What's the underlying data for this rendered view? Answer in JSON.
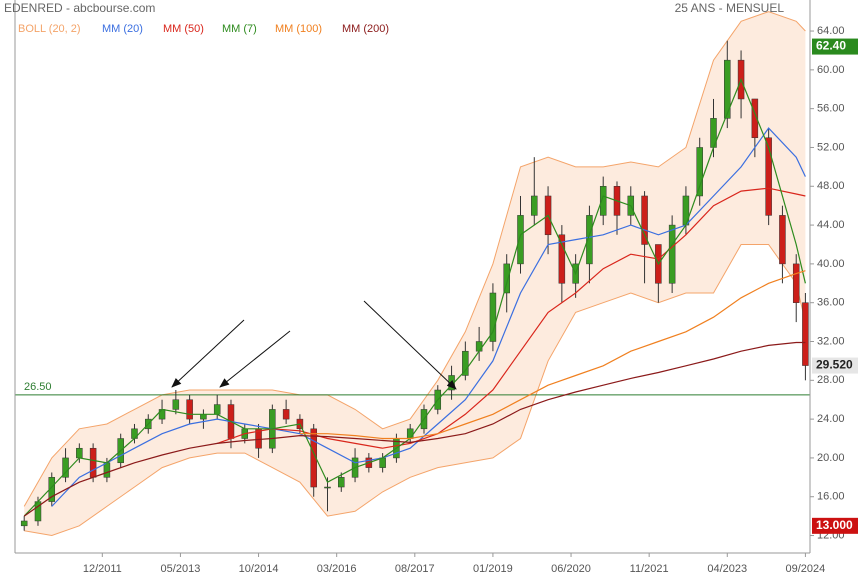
{
  "chart_data": {
    "type": "candlestick",
    "title": "EDENRED - abcbourse.com",
    "subtitle": "25 ANS - MENSUEL",
    "xlim": [
      "05/2010",
      "10/2024"
    ],
    "xticks": [
      "12/2011",
      "05/2013",
      "10/2014",
      "03/2016",
      "08/2017",
      "01/2019",
      "06/2020",
      "11/2021",
      "04/2023",
      "09/2024"
    ],
    "ylim": [
      10.2,
      67.2
    ],
    "yticks": [
      {
        "value": 12,
        "label": "12.00"
      },
      {
        "value": 16,
        "label": "16.00"
      },
      {
        "value": 20,
        "label": "20.00"
      },
      {
        "value": 24,
        "label": "24.00"
      },
      {
        "value": 28,
        "label": "28.00"
      },
      {
        "value": 32,
        "label": "32.00"
      },
      {
        "value": 36,
        "label": "36.00"
      },
      {
        "value": 40,
        "label": "40.00"
      },
      {
        "value": 44,
        "label": "44.00"
      },
      {
        "value": 48,
        "label": "48.00"
      },
      {
        "value": 52,
        "label": "52.00"
      },
      {
        "value": 56,
        "label": "56.00"
      },
      {
        "value": 60,
        "label": "60.00"
      },
      {
        "value": 64,
        "label": "64.00"
      }
    ],
    "up_color": "#3a9d23",
    "down_color": "#cc1f1a",
    "candles": {
      "x": [
        "07/2010",
        "10/2010",
        "01/2011",
        "04/2011",
        "07/2011",
        "10/2011",
        "01/2012",
        "04/2012",
        "07/2012",
        "10/2012",
        "01/2013",
        "04/2013",
        "07/2013",
        "10/2013",
        "01/2014",
        "04/2014",
        "07/2014",
        "10/2014",
        "01/2015",
        "04/2015",
        "07/2015",
        "10/2015",
        "01/2016",
        "04/2016",
        "07/2016",
        "10/2016",
        "01/2017",
        "04/2017",
        "07/2017",
        "10/2017",
        "01/2018",
        "04/2018",
        "07/2018",
        "10/2018",
        "01/2019",
        "04/2019",
        "07/2019",
        "10/2019",
        "01/2020",
        "04/2020",
        "07/2020",
        "10/2020",
        "01/2021",
        "04/2021",
        "07/2021",
        "10/2021",
        "01/2022",
        "04/2022",
        "07/2022",
        "10/2022",
        "01/2023",
        "04/2023",
        "07/2023",
        "10/2023",
        "01/2024",
        "04/2024",
        "07/2024",
        "09/2024"
      ],
      "open": [
        13,
        13.5,
        15.5,
        18,
        20,
        21,
        18,
        19.5,
        22,
        23,
        24,
        25,
        26,
        24,
        24.5,
        25.5,
        22,
        23,
        21,
        25,
        24,
        23,
        17,
        17,
        18,
        20,
        19,
        20,
        22,
        23,
        25,
        27,
        28.5,
        31,
        32,
        37,
        40,
        45,
        47,
        43,
        38,
        40,
        45,
        48,
        45,
        47,
        42,
        38,
        44,
        47,
        52,
        55,
        61,
        57,
        53,
        45,
        40,
        36
      ],
      "high": [
        14,
        16,
        18.5,
        21,
        21.5,
        21.5,
        20,
        22.5,
        23.5,
        24.5,
        26,
        27,
        26.5,
        25,
        26.5,
        26,
        23.5,
        23.5,
        25.5,
        26,
        24.5,
        23.5,
        18,
        18.5,
        21,
        20.5,
        20.5,
        22.5,
        23.5,
        25.5,
        27.5,
        29.5,
        32,
        33.5,
        38,
        41,
        47,
        51,
        48,
        44,
        41,
        46,
        49,
        48.5,
        48,
        47.5,
        42,
        45,
        48,
        53,
        57,
        63,
        62,
        57,
        54,
        46,
        41,
        37
      ],
      "low": [
        12.5,
        13,
        15,
        17.5,
        19.5,
        17.5,
        17.5,
        19,
        21.5,
        22.5,
        23.5,
        24.5,
        23.5,
        23,
        24,
        21,
        21.5,
        20,
        20.5,
        23.5,
        22.5,
        16,
        14.5,
        16.5,
        17.5,
        18.5,
        18.5,
        19.5,
        21.5,
        22.5,
        24.5,
        26,
        28,
        30,
        31,
        35,
        39,
        44,
        41,
        36,
        36.5,
        38,
        44,
        43,
        44,
        38,
        36,
        37,
        43,
        46,
        51,
        54,
        55,
        51,
        44,
        38,
        34,
        28
      ],
      "close": [
        13.5,
        15.5,
        18,
        20,
        21,
        18,
        19.5,
        22,
        23,
        24,
        25,
        26,
        24,
        24.5,
        25.5,
        22,
        23,
        21,
        25,
        24,
        23,
        17,
        17,
        18,
        20,
        19,
        20,
        22,
        23,
        25,
        27,
        28.5,
        31,
        32,
        37,
        40,
        45,
        47,
        43,
        38,
        40,
        45,
        48,
        45,
        47,
        42,
        38,
        44,
        47,
        52,
        55,
        61,
        57,
        53,
        45,
        40,
        36,
        29.52
      ]
    },
    "x": [
      "07/2010",
      "01/2011",
      "07/2011",
      "01/2012",
      "07/2012",
      "01/2013",
      "07/2013",
      "01/2014",
      "07/2014",
      "01/2015",
      "07/2015",
      "01/2016",
      "07/2016",
      "01/2017",
      "07/2017",
      "01/2018",
      "07/2018",
      "01/2019",
      "07/2019",
      "01/2020",
      "07/2020",
      "01/2021",
      "07/2021",
      "01/2022",
      "07/2022",
      "01/2023",
      "07/2023",
      "01/2024",
      "07/2024",
      "09/2024"
    ],
    "series": [
      {
        "name": "BOLL (20, 2)",
        "color": "#f4a46a",
        "upper": [
          15,
          20,
          23,
          23.5,
          25,
          26.5,
          27,
          27,
          27,
          27,
          26.5,
          26.5,
          25,
          23,
          24,
          28,
          33,
          40,
          50,
          51,
          50,
          50,
          50.5,
          50,
          52,
          61,
          65,
          66,
          65,
          64
        ],
        "lower": [
          12.5,
          12,
          13,
          15,
          17,
          19,
          20,
          20.5,
          20.5,
          19,
          17.5,
          14,
          14.5,
          16.5,
          18,
          19,
          19.5,
          20,
          22,
          30,
          35,
          36,
          37,
          36,
          37,
          37,
          42,
          42,
          38,
          34
        ]
      },
      {
        "name": "MM (20)",
        "color": "#3b6fe0",
        "values": [
          null,
          15,
          18,
          19.5,
          21,
          22.5,
          23.5,
          24,
          23.5,
          23,
          22.5,
          21,
          19.5,
          20,
          21,
          23.5,
          26,
          30,
          37,
          42,
          42.5,
          43,
          44,
          43,
          44,
          47,
          50,
          54,
          51,
          49
        ]
      },
      {
        "name": "MM (50)",
        "color": "#d9261c",
        "values": [
          null,
          null,
          null,
          null,
          null,
          null,
          null,
          21.5,
          22.5,
          23,
          22.8,
          22,
          21.5,
          21,
          21.5,
          22.5,
          24.5,
          27,
          31,
          35,
          37,
          39.5,
          41,
          40.5,
          43,
          46,
          47.5,
          47.8,
          47.2,
          47
        ]
      },
      {
        "name": "MM (7)",
        "color": "#2e8b1e",
        "values": [
          14,
          17,
          20,
          19.5,
          22,
          25,
          24.5,
          24.5,
          23,
          23,
          23.5,
          17.5,
          19,
          20,
          22,
          26,
          29,
          33,
          43,
          45,
          39,
          47,
          46,
          40,
          44,
          52,
          59,
          52,
          42,
          38
        ]
      },
      {
        "name": "MM (100)",
        "color": "#f08020",
        "values": [
          null,
          null,
          null,
          null,
          null,
          null,
          null,
          null,
          null,
          null,
          22.5,
          22.5,
          22.3,
          22,
          22,
          22.5,
          23.5,
          24.5,
          26,
          27.5,
          28.5,
          29.5,
          31,
          32,
          33,
          34.5,
          36.5,
          38,
          39,
          39.3
        ]
      },
      {
        "name": "MM (200)",
        "color": "#8b1a1a",
        "values": [
          14,
          16,
          17.5,
          18.5,
          19.5,
          20.3,
          21,
          21.5,
          21.8,
          22,
          22.3,
          22.2,
          22,
          21.8,
          21.6,
          22,
          22.5,
          23.5,
          25,
          26,
          26.8,
          27.5,
          28.2,
          28.8,
          29.5,
          30.2,
          31,
          31.6,
          31.9,
          31.9
        ]
      }
    ],
    "hline": {
      "value": 26.5,
      "label": "26.50",
      "color": "#2e7d32"
    },
    "price_tags": [
      {
        "value": 62.4,
        "label": "62.40",
        "color": "#2a8a1e",
        "text_color": "#ffffff"
      },
      {
        "value": 29.52,
        "label": "29.520",
        "color": "#e6e6e6",
        "text_color": "#222222"
      },
      {
        "value": 13,
        "label": "13.000",
        "color": "#cc1111",
        "text_color": "#ffffff"
      }
    ]
  }
}
